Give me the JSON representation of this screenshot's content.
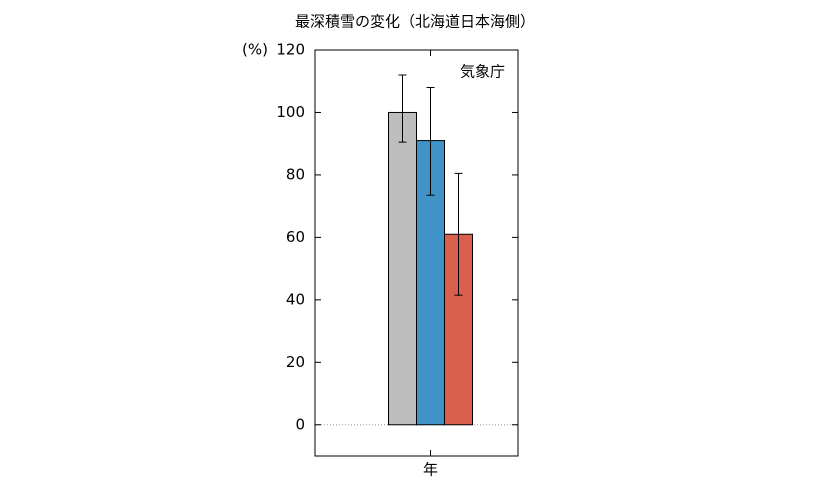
{
  "chart_data": {
    "type": "bar",
    "title": "最深積雪の変化（北海道日本海側）",
    "y_label": "(%)",
    "annotation": "気象庁",
    "categories": [
      "年"
    ],
    "series": [
      {
        "color": "#bebebe",
        "values": [
          100
        ],
        "error_minus": [
          9.5
        ],
        "error_plus": [
          12
        ]
      },
      {
        "color": "#3f93c6",
        "values": [
          91
        ],
        "error_minus": [
          17.5
        ],
        "error_plus": [
          17
        ]
      },
      {
        "color": "#d9604c",
        "values": [
          61
        ],
        "error_minus": [
          19.5
        ],
        "error_plus": [
          19.5
        ]
      }
    ],
    "ylim": [
      -10,
      120
    ],
    "yticks": [
      0,
      20,
      40,
      60,
      80,
      100,
      120
    ]
  }
}
